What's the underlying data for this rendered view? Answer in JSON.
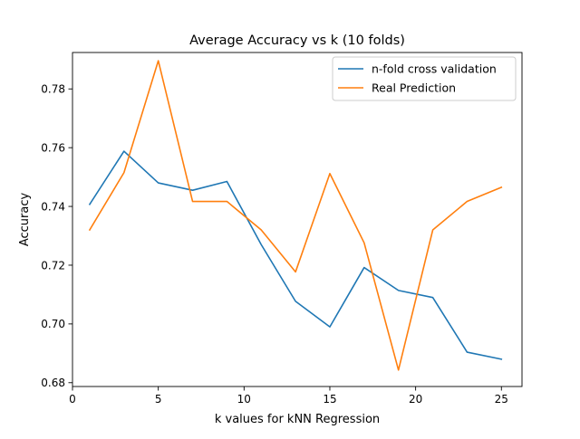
{
  "chart_data": {
    "type": "line",
    "title": "Average Accuracy vs k (10 folds)",
    "xlabel": "k values for kNN Regression",
    "ylabel": "Accuracy",
    "xlim": [
      0,
      26.2
    ],
    "ylim": [
      0.6787,
      0.7924
    ],
    "xticks": [
      0,
      5,
      10,
      15,
      20,
      25
    ],
    "xtick_labels": [
      "0",
      "5",
      "10",
      "15",
      "20",
      "25"
    ],
    "yticks": [
      0.68,
      0.7,
      0.72,
      0.74,
      0.76,
      0.78
    ],
    "ytick_labels": [
      "0.68",
      "0.70",
      "0.72",
      "0.74",
      "0.76",
      "0.78"
    ],
    "grid": false,
    "legend_position": "upper right",
    "x": [
      1,
      3,
      5,
      7,
      9,
      11,
      13,
      15,
      17,
      19,
      21,
      23,
      25
    ],
    "series": [
      {
        "name": "n-fold cross validation",
        "color": "#1f77b4",
        "values": [
          0.7407,
          0.7588,
          0.748,
          0.7455,
          0.7485,
          0.727,
          0.7077,
          0.699,
          0.7192,
          0.7114,
          0.709,
          0.6904,
          0.688
        ]
      },
      {
        "name": "Real Prediction",
        "color": "#ff7f0e",
        "values": [
          0.732,
          0.7515,
          0.7896,
          0.7417,
          0.7417,
          0.732,
          0.7177,
          0.7512,
          0.7276,
          0.6843,
          0.732,
          0.7417,
          0.7465
        ]
      }
    ]
  }
}
